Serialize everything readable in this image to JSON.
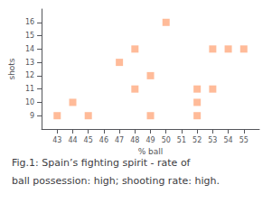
{
  "chart_data": {
    "type": "scatter",
    "title": "Fig.1: Spain’s fighting spirit - rate of",
    "subtitle": "ball possession: high; shooting rate: high.",
    "xlabel": "% ball",
    "ylabel": "shots",
    "x": [
      43,
      44,
      45,
      47,
      48,
      48,
      49,
      49,
      50,
      52,
      52,
      52,
      53,
      53,
      54,
      55
    ],
    "values": [
      9,
      10,
      9,
      13,
      14,
      11,
      12,
      9,
      16,
      11,
      10,
      9,
      14,
      11,
      14,
      14
    ],
    "color": "#FFAA80",
    "marker": "square",
    "xlim": [
      42,
      56
    ],
    "ylim": [
      8,
      17
    ],
    "xticks": [
      43,
      44,
      45,
      46,
      47,
      48,
      49,
      50,
      51,
      52,
      53,
      54,
      55
    ],
    "yticks": [
      9,
      10,
      11,
      12,
      13,
      14,
      15,
      16
    ],
    "grid": false
  }
}
